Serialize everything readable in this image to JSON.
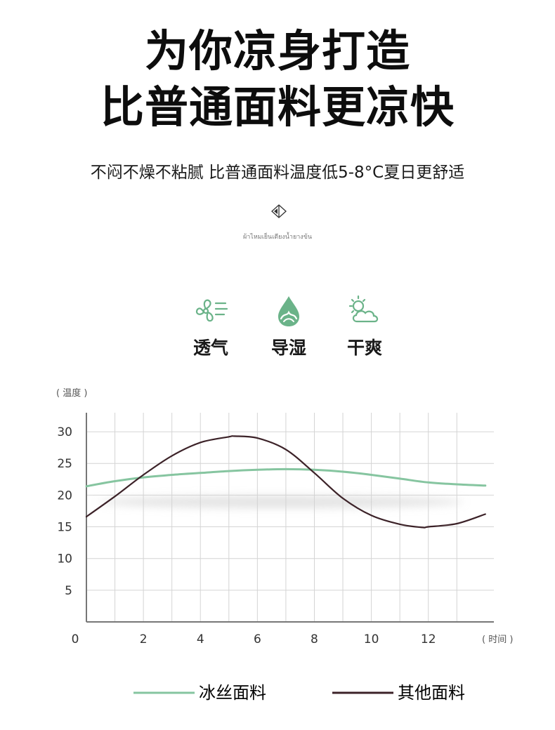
{
  "header": {
    "title_line1": "为你凉身打造",
    "title_line2": "比普通面料更凉快",
    "subtitle": "不闷不燥不粘腻 比普通面料温度低5-8°C夏日更舒适",
    "thai_caption": "ผ้าไหมเย็นเตียงน้ำยางข้น"
  },
  "icons": {
    "deco": "diamond-arrows-icon"
  },
  "features": [
    {
      "label": "透气",
      "icon": "fan-breathable-icon"
    },
    {
      "label": "导湿",
      "icon": "water-drop-icon"
    },
    {
      "label": "干爽",
      "icon": "sun-cloud-icon"
    }
  ],
  "colors": {
    "accent_green": "#86c5a0",
    "dark_curve": "#3c2228",
    "grid": "#d4d4d4",
    "axis": "#777777"
  },
  "chart_data": {
    "type": "line",
    "ylabel": "( 温度 )",
    "xlabel": "( 时间 )",
    "xlim": [
      0,
      14.3
    ],
    "ylim": [
      0,
      33
    ],
    "x_ticks": [
      0,
      2,
      4,
      6,
      8,
      10,
      12
    ],
    "y_ticks": [
      5,
      10,
      15,
      20,
      25,
      30
    ],
    "grid": true,
    "legend_placement": "bottom",
    "series": [
      {
        "name": "冰丝面料",
        "color": "#86c5a0",
        "x": [
          0,
          1,
          2,
          3,
          4,
          5,
          6,
          7,
          8,
          9,
          10,
          11,
          12,
          13,
          14
        ],
        "y": [
          21.4,
          22.2,
          22.8,
          23.2,
          23.5,
          23.8,
          24.0,
          24.1,
          24.0,
          23.7,
          23.2,
          22.6,
          22.0,
          21.7,
          21.5
        ]
      },
      {
        "name": "其他面料",
        "color": "#3c2228",
        "x": [
          0,
          1,
          2,
          3,
          4,
          5,
          5.2,
          6,
          7,
          8,
          9,
          10,
          11,
          11.8,
          12,
          13,
          14
        ],
        "y": [
          16.6,
          19.8,
          23.2,
          26.2,
          28.3,
          29.2,
          29.3,
          29.0,
          27.2,
          23.5,
          19.5,
          16.8,
          15.4,
          14.9,
          15.0,
          15.5,
          17.0
        ]
      }
    ]
  }
}
